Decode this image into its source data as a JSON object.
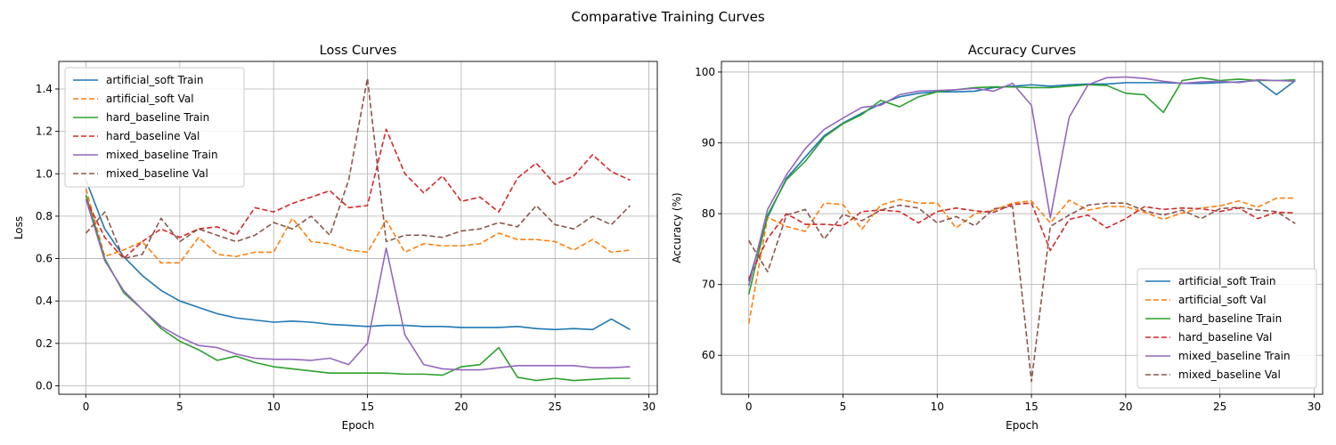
{
  "title": "Comparative Training Curves",
  "colors": {
    "artificial_soft": "#1f77b4",
    "artificial_soft_val": "#ff7f0e",
    "hard_baseline": "#2ca02c",
    "hard_baseline_val": "#d62728",
    "mixed_baseline": "#9467bd",
    "mixed_baseline_val": "#8c564b"
  },
  "chart_data": [
    {
      "type": "line",
      "title": "Loss Curves",
      "xlabel": "Epoch",
      "ylabel": "Loss",
      "xlim": [
        -1.45,
        30.45
      ],
      "ylim": [
        -0.04,
        1.53
      ],
      "xticks": [
        0,
        5,
        10,
        15,
        20,
        25,
        30
      ],
      "yticks": [
        0.0,
        0.2,
        0.4,
        0.6,
        0.8,
        1.0,
        1.2,
        1.4
      ],
      "ytick_labels": [
        "0.0",
        "0.2",
        "0.4",
        "0.6",
        "0.8",
        "1.0",
        "1.2",
        "1.4"
      ],
      "grid": true,
      "legend_position": "upper left",
      "x": [
        0,
        1,
        2,
        3,
        4,
        5,
        6,
        7,
        8,
        9,
        10,
        11,
        12,
        13,
        14,
        15,
        16,
        17,
        18,
        19,
        20,
        21,
        22,
        23,
        24,
        25,
        26,
        27,
        28,
        29
      ],
      "series": [
        {
          "name": "artificial_soft Train",
          "color": "#1f77b4",
          "dash": "solid",
          "values": [
            0.97,
            0.74,
            0.61,
            0.52,
            0.45,
            0.4,
            0.37,
            0.34,
            0.32,
            0.31,
            0.3,
            0.305,
            0.3,
            0.29,
            0.285,
            0.28,
            0.285,
            0.285,
            0.28,
            0.28,
            0.275,
            0.275,
            0.275,
            0.28,
            0.27,
            0.265,
            0.27,
            0.265,
            0.315,
            0.265
          ]
        },
        {
          "name": "artificial_soft Val",
          "color": "#ff7f0e",
          "dash": "dashed",
          "values": [
            0.93,
            0.61,
            0.64,
            0.68,
            0.58,
            0.58,
            0.7,
            0.62,
            0.61,
            0.63,
            0.63,
            0.79,
            0.68,
            0.67,
            0.64,
            0.63,
            0.78,
            0.63,
            0.67,
            0.66,
            0.66,
            0.67,
            0.72,
            0.69,
            0.69,
            0.68,
            0.64,
            0.69,
            0.63,
            0.64
          ]
        },
        {
          "name": "hard_baseline Train",
          "color": "#2ca02c",
          "dash": "solid",
          "values": [
            0.9,
            0.6,
            0.44,
            0.36,
            0.27,
            0.21,
            0.17,
            0.12,
            0.14,
            0.11,
            0.09,
            0.08,
            0.07,
            0.06,
            0.06,
            0.06,
            0.06,
            0.055,
            0.055,
            0.05,
            0.09,
            0.1,
            0.18,
            0.04,
            0.025,
            0.035,
            0.025,
            0.03,
            0.035,
            0.035
          ]
        },
        {
          "name": "hard_baseline Val",
          "color": "#d62728",
          "dash": "dashed",
          "values": [
            0.88,
            0.7,
            0.6,
            0.68,
            0.74,
            0.7,
            0.74,
            0.75,
            0.71,
            0.84,
            0.82,
            0.86,
            0.89,
            0.92,
            0.84,
            0.85,
            1.21,
            1.0,
            0.91,
            0.99,
            0.87,
            0.89,
            0.82,
            0.98,
            1.05,
            0.95,
            0.99,
            1.09,
            1.01,
            0.97
          ]
        },
        {
          "name": "mixed_baseline Train",
          "color": "#9467bd",
          "dash": "solid",
          "values": [
            0.88,
            0.59,
            0.45,
            0.36,
            0.28,
            0.23,
            0.19,
            0.18,
            0.15,
            0.13,
            0.125,
            0.125,
            0.12,
            0.13,
            0.1,
            0.2,
            0.65,
            0.24,
            0.1,
            0.08,
            0.075,
            0.075,
            0.085,
            0.095,
            0.095,
            0.095,
            0.095,
            0.085,
            0.085,
            0.09
          ]
        },
        {
          "name": "mixed_baseline Val",
          "color": "#8c564b",
          "dash": "dashed",
          "values": [
            0.72,
            0.82,
            0.6,
            0.62,
            0.79,
            0.68,
            0.74,
            0.71,
            0.68,
            0.71,
            0.77,
            0.74,
            0.8,
            0.71,
            0.97,
            1.45,
            0.68,
            0.71,
            0.71,
            0.7,
            0.73,
            0.74,
            0.77,
            0.75,
            0.85,
            0.76,
            0.74,
            0.8,
            0.76,
            0.85
          ]
        }
      ]
    },
    {
      "type": "line",
      "title": "Accuracy Curves",
      "xlabel": "Epoch",
      "ylabel": "Accuracy (%)",
      "xlim": [
        -1.45,
        30.45
      ],
      "ylim": [
        54.5,
        101.5
      ],
      "xticks": [
        0,
        5,
        10,
        15,
        20,
        25,
        30
      ],
      "yticks": [
        60,
        70,
        80,
        90,
        100
      ],
      "ytick_labels": [
        "60",
        "70",
        "80",
        "90",
        "100"
      ],
      "grid": true,
      "legend_position": "lower right",
      "x": [
        0,
        1,
        2,
        3,
        4,
        5,
        6,
        7,
        8,
        9,
        10,
        11,
        12,
        13,
        14,
        15,
        16,
        17,
        18,
        19,
        20,
        21,
        22,
        23,
        24,
        25,
        26,
        27,
        28,
        29
      ],
      "series": [
        {
          "name": "artificial_soft Train",
          "color": "#1f77b4",
          "dash": "solid",
          "values": [
            70.5,
            79.5,
            85.0,
            88.0,
            91.0,
            92.8,
            94.2,
            95.5,
            96.5,
            97.0,
            97.2,
            97.2,
            97.3,
            97.8,
            98.0,
            98.2,
            98.0,
            98.2,
            98.3,
            98.3,
            98.5,
            98.5,
            98.5,
            98.4,
            98.4,
            98.5,
            98.6,
            98.8,
            96.8,
            98.8
          ]
        },
        {
          "name": "artificial_soft Val",
          "color": "#ff7f0e",
          "dash": "dashed",
          "values": [
            64.5,
            79.5,
            78.2,
            77.5,
            81.5,
            81.3,
            77.8,
            81.2,
            82.0,
            81.5,
            81.5,
            78.0,
            80.0,
            80.5,
            81.5,
            81.8,
            78.7,
            81.9,
            80.5,
            81.0,
            81.0,
            80.2,
            79.2,
            80.1,
            80.8,
            81.1,
            81.8,
            80.9,
            82.2,
            82.2
          ]
        },
        {
          "name": "hard_baseline Train",
          "color": "#2ca02c",
          "dash": "solid",
          "values": [
            68.6,
            79.8,
            84.8,
            87.4,
            90.8,
            92.7,
            94.0,
            96.0,
            95.1,
            96.5,
            97.2,
            97.5,
            97.8,
            97.9,
            97.9,
            97.8,
            97.8,
            98.0,
            98.2,
            98.1,
            97.0,
            96.8,
            94.3,
            98.8,
            99.2,
            98.8,
            99.0,
            98.8,
            98.8,
            98.9
          ]
        },
        {
          "name": "hard_baseline Val",
          "color": "#d62728",
          "dash": "dashed",
          "values": [
            70.8,
            76.5,
            80.0,
            78.5,
            78.5,
            78.3,
            80.3,
            80.5,
            80.3,
            78.7,
            80.3,
            80.8,
            80.4,
            80.2,
            81.3,
            81.5,
            74.8,
            79.2,
            79.8,
            78.0,
            79.3,
            81.0,
            80.6,
            80.8,
            80.7,
            80.3,
            80.8,
            79.3,
            80.2,
            80.1
          ]
        },
        {
          "name": "mixed_baseline Train",
          "color": "#9467bd",
          "dash": "solid",
          "values": [
            69.8,
            80.6,
            85.5,
            89.2,
            91.9,
            93.5,
            95.0,
            95.3,
            96.8,
            97.3,
            97.4,
            97.5,
            97.7,
            97.3,
            98.4,
            95.3,
            79.4,
            93.6,
            98.2,
            99.2,
            99.3,
            99.1,
            98.7,
            98.4,
            98.6,
            98.7,
            98.5,
            98.9,
            98.8,
            98.7
          ]
        },
        {
          "name": "mixed_baseline Val",
          "color": "#8c564b",
          "dash": "dashed",
          "values": [
            76.2,
            71.8,
            79.8,
            80.6,
            76.4,
            79.9,
            79.0,
            80.5,
            81.2,
            80.8,
            78.7,
            79.6,
            78.3,
            80.7,
            81.0,
            56.3,
            78.2,
            79.8,
            81.2,
            81.5,
            81.5,
            80.4,
            79.8,
            80.5,
            79.3,
            80.7,
            80.9,
            80.5,
            80.3,
            78.6
          ]
        }
      ]
    }
  ]
}
